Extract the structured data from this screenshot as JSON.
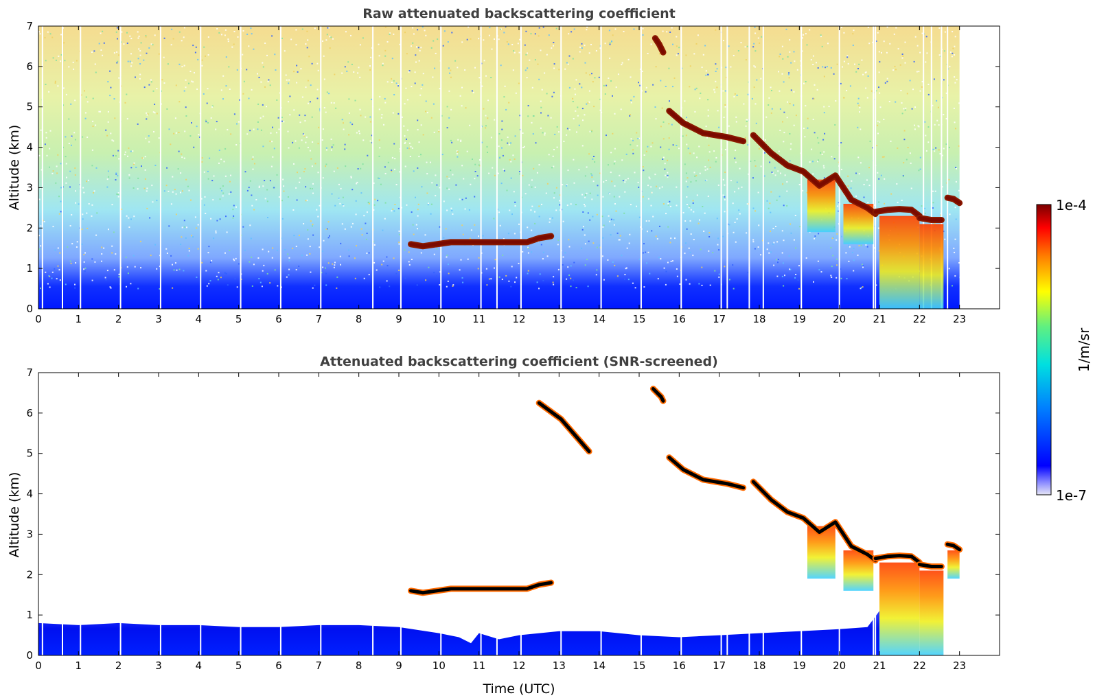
{
  "chart_data": [
    {
      "type": "heatmap",
      "title": "Raw attenuated backscattering coefficient",
      "xlabel": "",
      "ylabel": "Altitude (km)",
      "xlim": [
        0,
        24
      ],
      "ylim": [
        0,
        7
      ],
      "x_ticks": [
        "0",
        "1",
        "2",
        "3",
        "4",
        "5",
        "6",
        "7",
        "8",
        "9",
        "10",
        "11",
        "12",
        "13",
        "14",
        "15",
        "16",
        "17",
        "18",
        "19",
        "20",
        "21",
        "22",
        "23"
      ],
      "y_ticks": [
        "0",
        "1",
        "2",
        "3",
        "4",
        "5",
        "6",
        "7"
      ],
      "data_end_hour": 23,
      "grid": false,
      "data_gaps_hours": [
        0.1,
        0.6,
        1.05,
        2.05,
        3.05,
        4.05,
        5.05,
        6.05,
        7.05,
        8.35,
        9.05,
        10.05,
        11.05,
        11.45,
        12.05,
        13.05,
        14.05,
        15.05,
        16.05,
        17.05,
        17.2,
        17.75,
        18.1,
        19.05,
        20.0,
        20.85,
        20.9,
        22.1,
        22.3,
        22.55,
        22.7
      ],
      "cloud_layers": [
        {
          "x": [
            15.75,
            16.1,
            16.6,
            17.2,
            17.6
          ],
          "y": [
            4.9,
            4.6,
            4.35,
            4.25,
            4.15
          ]
        },
        {
          "x": [
            17.85,
            18.3,
            18.7,
            19.1,
            19.5,
            19.9,
            20.3,
            20.7,
            20.9
          ],
          "y": [
            4.3,
            3.85,
            3.55,
            3.4,
            3.05,
            3.3,
            2.7,
            2.5,
            2.35
          ]
        },
        {
          "x": [
            20.9,
            21.2,
            21.5,
            21.8,
            22.0
          ],
          "y": [
            2.4,
            2.45,
            2.47,
            2.45,
            2.3
          ]
        },
        {
          "x": [
            22.0,
            22.3,
            22.55
          ],
          "y": [
            2.25,
            2.2,
            2.2
          ]
        },
        {
          "x": [
            22.7,
            22.85,
            23.0
          ],
          "y": [
            2.75,
            2.72,
            2.62
          ]
        },
        {
          "x": [
            9.3,
            9.6,
            10.3,
            12.2,
            12.5,
            12.8
          ],
          "y": [
            1.6,
            1.55,
            1.65,
            1.65,
            1.75,
            1.8
          ]
        },
        {
          "x": [
            15.4,
            15.5,
            15.6
          ],
          "y": [
            6.7,
            6.55,
            6.35
          ]
        }
      ],
      "precipitation_streaks": [
        {
          "x0": 19.2,
          "x1": 19.9,
          "top": 3.2,
          "bottom": 1.9
        },
        {
          "x0": 20.1,
          "x1": 20.85,
          "top": 2.6,
          "bottom": 1.6
        },
        {
          "x0": 21.0,
          "x1": 22.0,
          "top": 2.3,
          "bottom": 0.0
        },
        {
          "x0": 22.0,
          "x1": 22.6,
          "top": 2.1,
          "bottom": 0.0
        }
      ]
    },
    {
      "type": "heatmap",
      "title": "Attenuated backscattering coefficient (SNR-screened)",
      "xlabel": "Time (UTC)",
      "ylabel": "Altitude (km)",
      "xlim": [
        0,
        24
      ],
      "ylim": [
        0,
        7
      ],
      "x_ticks": [
        "0",
        "1",
        "2",
        "3",
        "4",
        "5",
        "6",
        "7",
        "8",
        "9",
        "10",
        "11",
        "12",
        "13",
        "14",
        "15",
        "16",
        "17",
        "18",
        "19",
        "20",
        "21",
        "22",
        "23"
      ],
      "y_ticks": [
        "0",
        "1",
        "2",
        "3",
        "4",
        "5",
        "6",
        "7"
      ],
      "data_end_hour": 23,
      "grid": false,
      "boundary_layer_top_km": {
        "x": [
          0,
          1,
          2,
          3,
          4,
          5,
          6,
          7,
          8,
          9,
          10,
          10.5,
          10.8,
          11.0,
          11.5,
          12.0,
          13.0,
          14.0,
          15.0,
          16.0,
          17.0,
          18.0,
          19.0,
          20.0,
          20.7,
          21.0
        ],
        "y": [
          0.8,
          0.75,
          0.8,
          0.75,
          0.75,
          0.7,
          0.7,
          0.75,
          0.75,
          0.7,
          0.55,
          0.45,
          0.3,
          0.55,
          0.4,
          0.5,
          0.6,
          0.6,
          0.5,
          0.45,
          0.5,
          0.55,
          0.6,
          0.65,
          0.7,
          1.1
        ]
      },
      "cloud_layers": [
        {
          "x": [
            15.75,
            16.1,
            16.6,
            17.2,
            17.6
          ],
          "y": [
            4.9,
            4.6,
            4.35,
            4.25,
            4.15
          ]
        },
        {
          "x": [
            17.85,
            18.3,
            18.7,
            19.1,
            19.5,
            19.9,
            20.3,
            20.7,
            20.9
          ],
          "y": [
            4.3,
            3.85,
            3.55,
            3.4,
            3.05,
            3.3,
            2.7,
            2.5,
            2.35
          ]
        },
        {
          "x": [
            20.9,
            21.2,
            21.5,
            21.8,
            22.0
          ],
          "y": [
            2.4,
            2.45,
            2.47,
            2.45,
            2.3
          ]
        },
        {
          "x": [
            22.0,
            22.3,
            22.55
          ],
          "y": [
            2.25,
            2.2,
            2.2
          ]
        },
        {
          "x": [
            22.7,
            22.85,
            23.0
          ],
          "y": [
            2.75,
            2.72,
            2.62
          ]
        },
        {
          "x": [
            9.3,
            9.6,
            10.3,
            12.2,
            12.5,
            12.8
          ],
          "y": [
            1.6,
            1.55,
            1.65,
            1.65,
            1.75,
            1.8
          ]
        },
        {
          "x": [
            12.5,
            13.05,
            13.75
          ],
          "y": [
            6.25,
            5.85,
            5.05
          ]
        },
        {
          "x": [
            15.35,
            15.55,
            15.6
          ],
          "y": [
            6.6,
            6.4,
            6.3
          ]
        }
      ],
      "precipitation_streaks": [
        {
          "x0": 19.2,
          "x1": 19.9,
          "top": 3.2,
          "bottom": 1.9
        },
        {
          "x0": 20.1,
          "x1": 20.85,
          "top": 2.6,
          "bottom": 1.6
        },
        {
          "x0": 21.0,
          "x1": 22.0,
          "top": 2.3,
          "bottom": 0.0
        },
        {
          "x0": 22.0,
          "x1": 22.6,
          "top": 2.1,
          "bottom": 0.0
        },
        {
          "x0": 22.7,
          "x1": 23.0,
          "top": 2.6,
          "bottom": 1.9
        }
      ]
    }
  ],
  "colorbar": {
    "label": "1/m/sr",
    "min_label": "1e-7",
    "max_label": "1e-4",
    "scale": "log",
    "colors": [
      "#e6e6f5",
      "#0000ff",
      "#00a0ff",
      "#00ffc8",
      "#ffff00",
      "#ff8000",
      "#ff0000",
      "#800000"
    ]
  }
}
